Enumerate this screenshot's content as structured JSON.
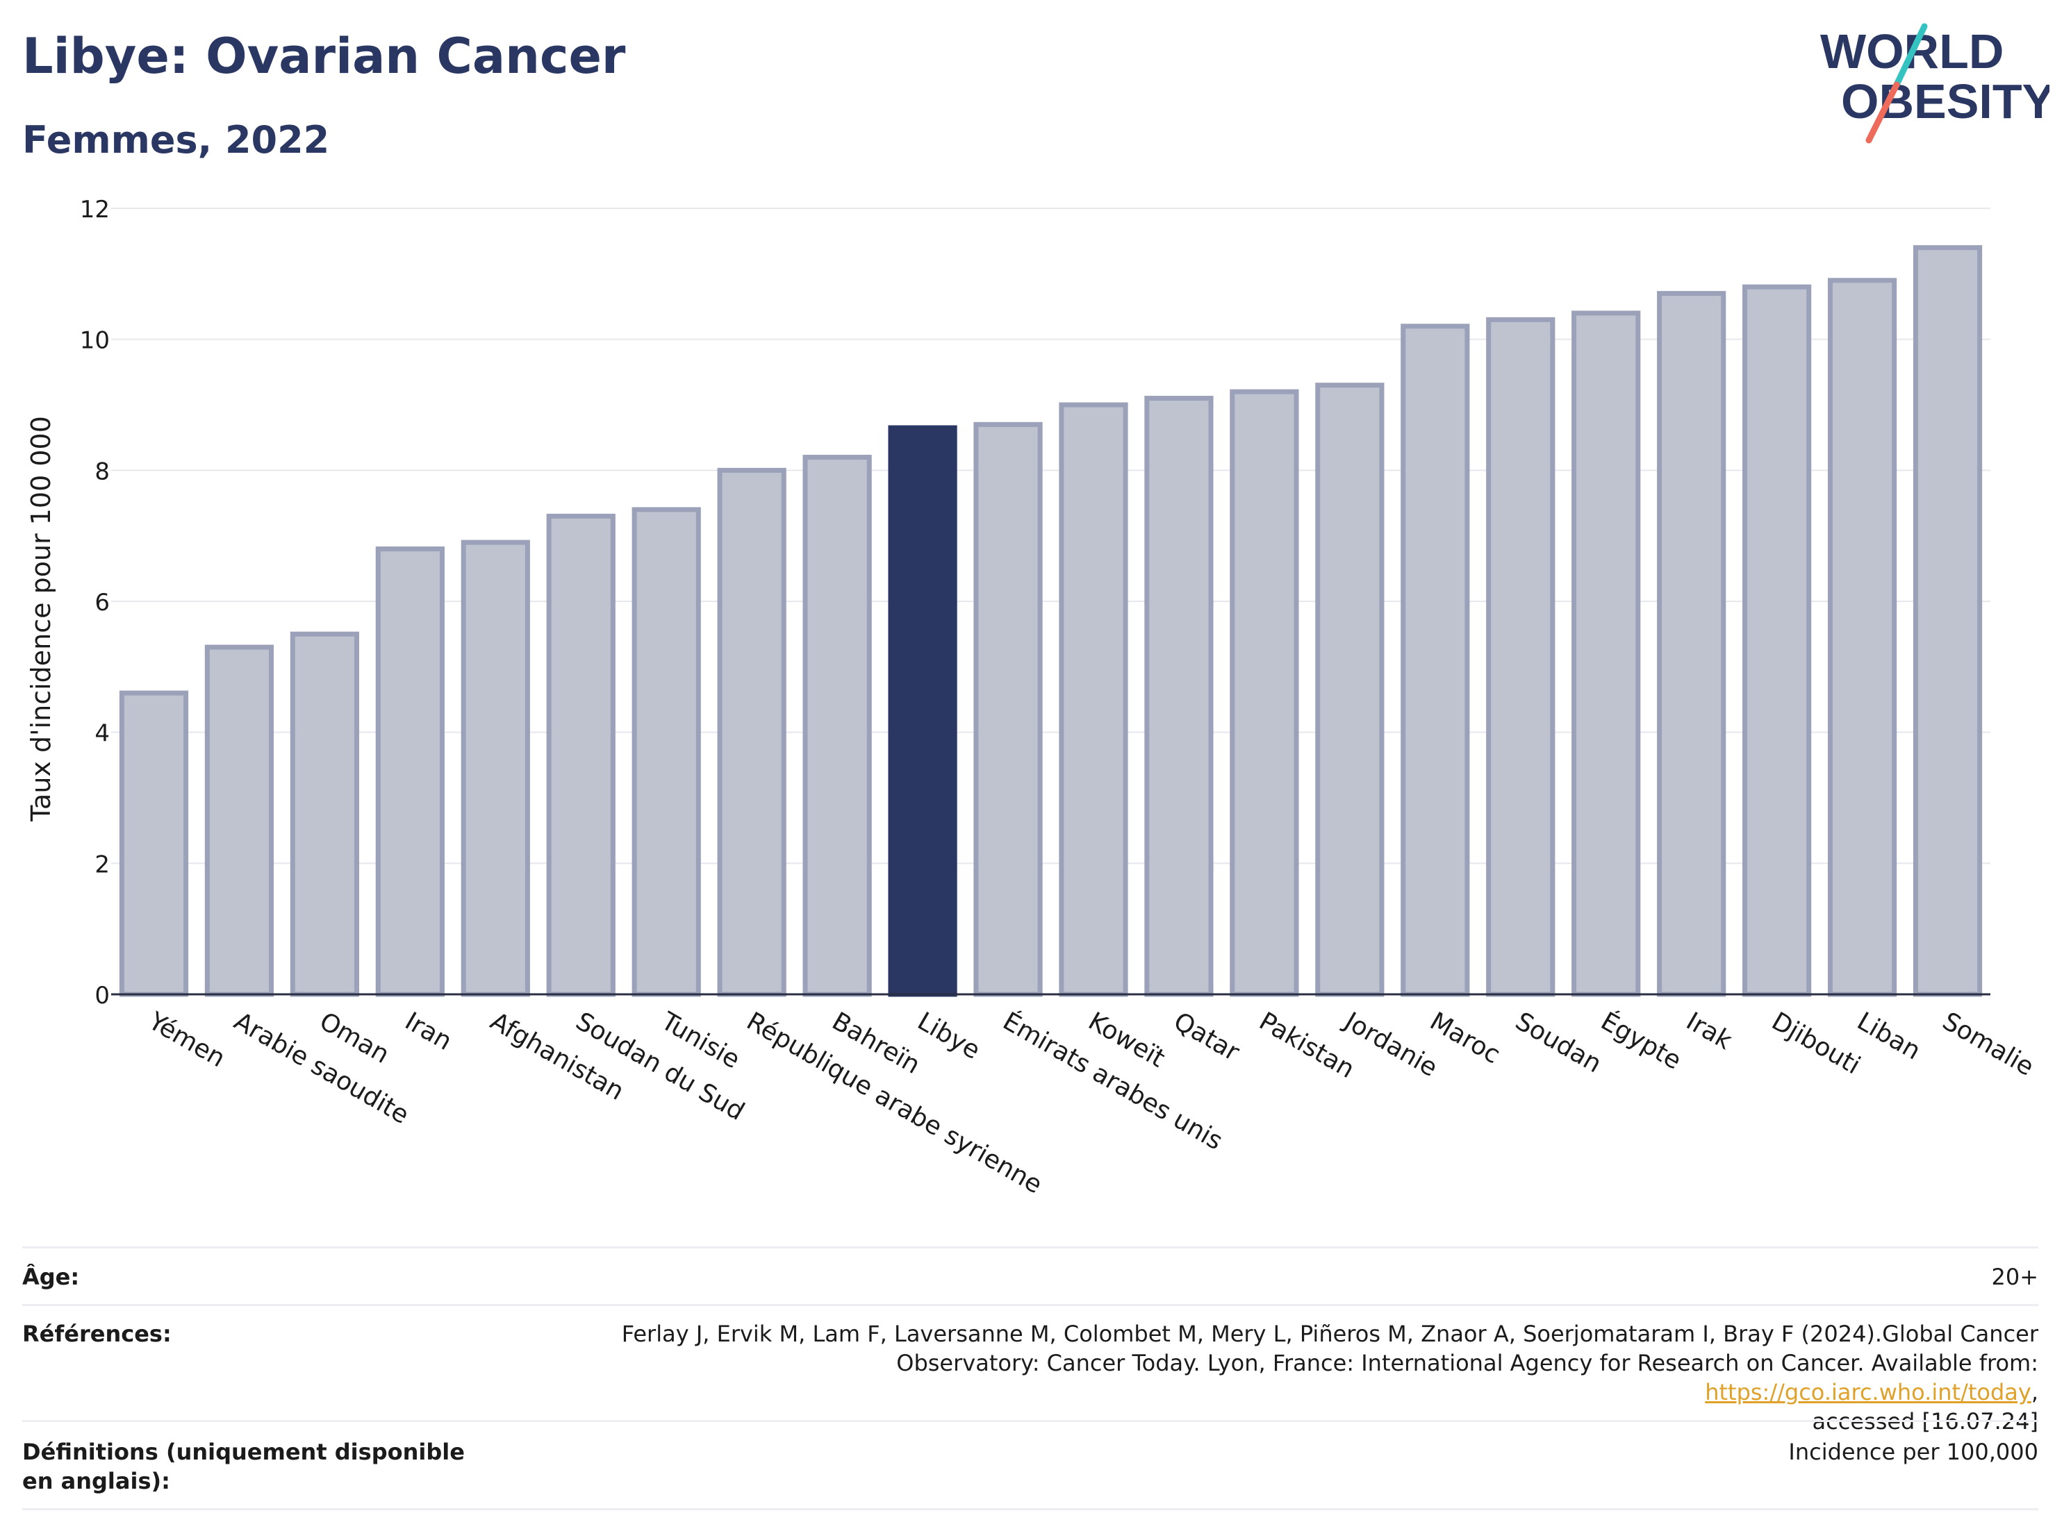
{
  "header": {
    "title": "Libye: Ovarian Cancer",
    "subtitle": "Femmes, 2022",
    "logo_line1": "WORLD",
    "logo_line2": "OBESITY"
  },
  "colors": {
    "title": "#2a3763",
    "highlight_bar": "#2a3763",
    "bar_fill": "#bfc3d0",
    "bar_stroke": "#9aa1b8",
    "logo_slash_teal": "#35c3c1",
    "logo_slash_coral": "#ee6b5b"
  },
  "chart_data": {
    "type": "bar",
    "ylabel": "Taux d'incidence pour 100 000",
    "ylim": [
      0,
      12
    ],
    "yticks": [
      0,
      2,
      4,
      6,
      8,
      10,
      12
    ],
    "grid": true,
    "highlight": "Libye",
    "categories": [
      "Yémen",
      "Arabie saoudite",
      "Oman",
      "Iran",
      "Afghanistan",
      "Soudan du Sud",
      "Tunisie",
      "République arabe syrienne",
      "Bahreïn",
      "Libye",
      "Émirats arabes unis",
      "Koweït",
      "Qatar",
      "Pakistan",
      "Jordanie",
      "Maroc",
      "Soudan",
      "Égypte",
      "Irak",
      "Djibouti",
      "Liban",
      "Somalie"
    ],
    "values": [
      4.6,
      5.3,
      5.5,
      6.8,
      6.9,
      7.3,
      7.4,
      8.0,
      8.2,
      8.65,
      8.7,
      9.0,
      9.1,
      9.2,
      9.3,
      10.2,
      10.3,
      10.4,
      10.7,
      10.8,
      10.9,
      11.4
    ]
  },
  "meta": {
    "age_label": "Âge:",
    "age_value": "20+",
    "refs_label": "Références:",
    "refs_text_1": "Ferlay J, Ervik M, Lam F, Laversanne M, Colombet M, Mery L, Piñeros M, Znaor A, Soerjomataram I, Bray F (2024).Global Cancer",
    "refs_text_2": "Observatory: Cancer Today. Lyon, France: International Agency for Research on Cancer. Available from: ",
    "refs_link": "https://gco.iarc.who.int/today",
    "refs_text_3": ",",
    "refs_text_4": "accessed [16.07.24]",
    "defs_label": "Définitions (uniquement disponible en anglais):",
    "defs_value": "Incidence per 100,000"
  }
}
